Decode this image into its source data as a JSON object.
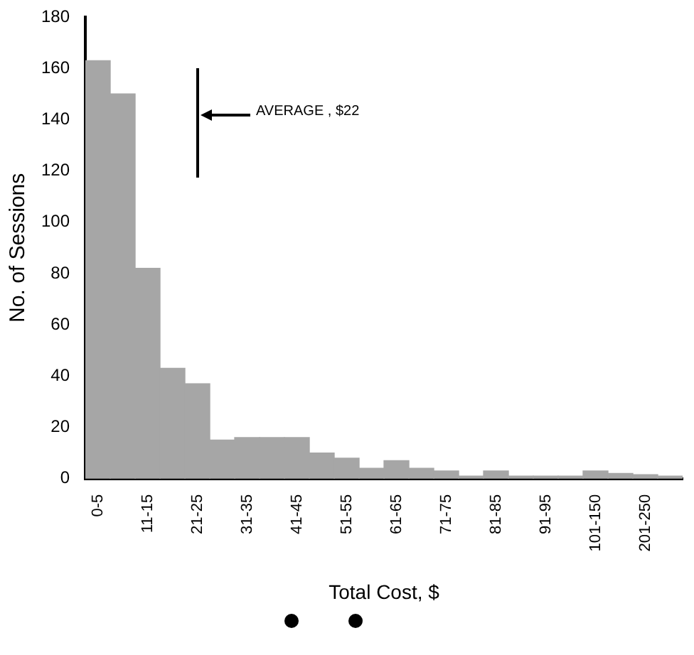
{
  "chart_data": {
    "type": "bar",
    "xlabel": "Total Cost, $",
    "ylabel": "No. of Sessions",
    "categories": [
      "0-5",
      null,
      "11-15",
      null,
      "21-25",
      null,
      "31-35",
      null,
      "41-45",
      null,
      "51-55",
      null,
      "61-65",
      null,
      "71-75",
      null,
      "81-85",
      null,
      "91-95",
      null,
      "101-150",
      null,
      "201-250",
      null
    ],
    "values": [
      163,
      150,
      82,
      43,
      37,
      15,
      16,
      16,
      16,
      10,
      8,
      4,
      7,
      4,
      3,
      1,
      3,
      1,
      1,
      1,
      3,
      2,
      1.5,
      1
    ],
    "color": "#a6a6a6",
    "ylim": [
      0,
      180
    ],
    "yticks": [
      0,
      20,
      40,
      60,
      80,
      100,
      120,
      140,
      160,
      180
    ],
    "grid": false,
    "legend": false,
    "annotations": [
      "AVERAGE , $22"
    ]
  }
}
